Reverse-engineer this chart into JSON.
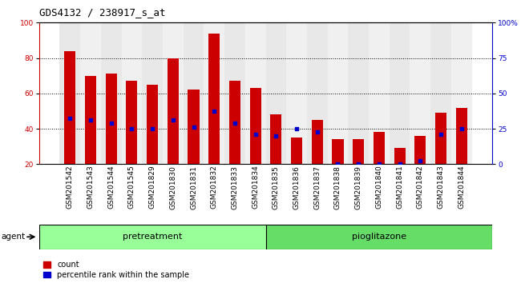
{
  "title": "GDS4132 / 238917_s_at",
  "categories": [
    "GSM201542",
    "GSM201543",
    "GSM201544",
    "GSM201545",
    "GSM201829",
    "GSM201830",
    "GSM201831",
    "GSM201832",
    "GSM201833",
    "GSM201834",
    "GSM201835",
    "GSM201836",
    "GSM201837",
    "GSM201838",
    "GSM201839",
    "GSM201840",
    "GSM201841",
    "GSM201842",
    "GSM201843",
    "GSM201844"
  ],
  "count_values": [
    84,
    70,
    71,
    67,
    65,
    80,
    62,
    94,
    67,
    63,
    48,
    35,
    45,
    34,
    34,
    38,
    29,
    36,
    49,
    52
  ],
  "percentile_values": [
    46,
    45,
    43,
    40,
    40,
    45,
    41,
    50,
    43,
    37,
    36,
    40,
    38,
    20,
    20,
    20,
    20,
    22,
    37,
    40
  ],
  "bar_color": "#cc0000",
  "percentile_color": "#0000cc",
  "pretreatment_color": "#99ff99",
  "pioglitazone_color": "#66dd66",
  "ylabel_left_color": "#cc0000",
  "ylabel_right_color": "#0000cc",
  "left_ticks": [
    20,
    40,
    60,
    80,
    100
  ],
  "right_ticks": [
    0,
    25,
    50,
    75,
    100
  ],
  "right_tick_labels": [
    "0",
    "25",
    "50",
    "75",
    "100%"
  ],
  "ylim_left": [
    20,
    100
  ],
  "ylim_right": [
    0,
    100
  ],
  "agent_label": "agent",
  "pretreatment_label": "pretreatment",
  "pioglitazone_label": "pioglitazone",
  "legend_count_label": "count",
  "legend_percentile_label": "percentile rank within the sample",
  "title_fontsize": 9,
  "tick_fontsize": 6.5,
  "bar_width": 0.55,
  "n_pretreatment": 10,
  "n_pioglitazone": 10
}
